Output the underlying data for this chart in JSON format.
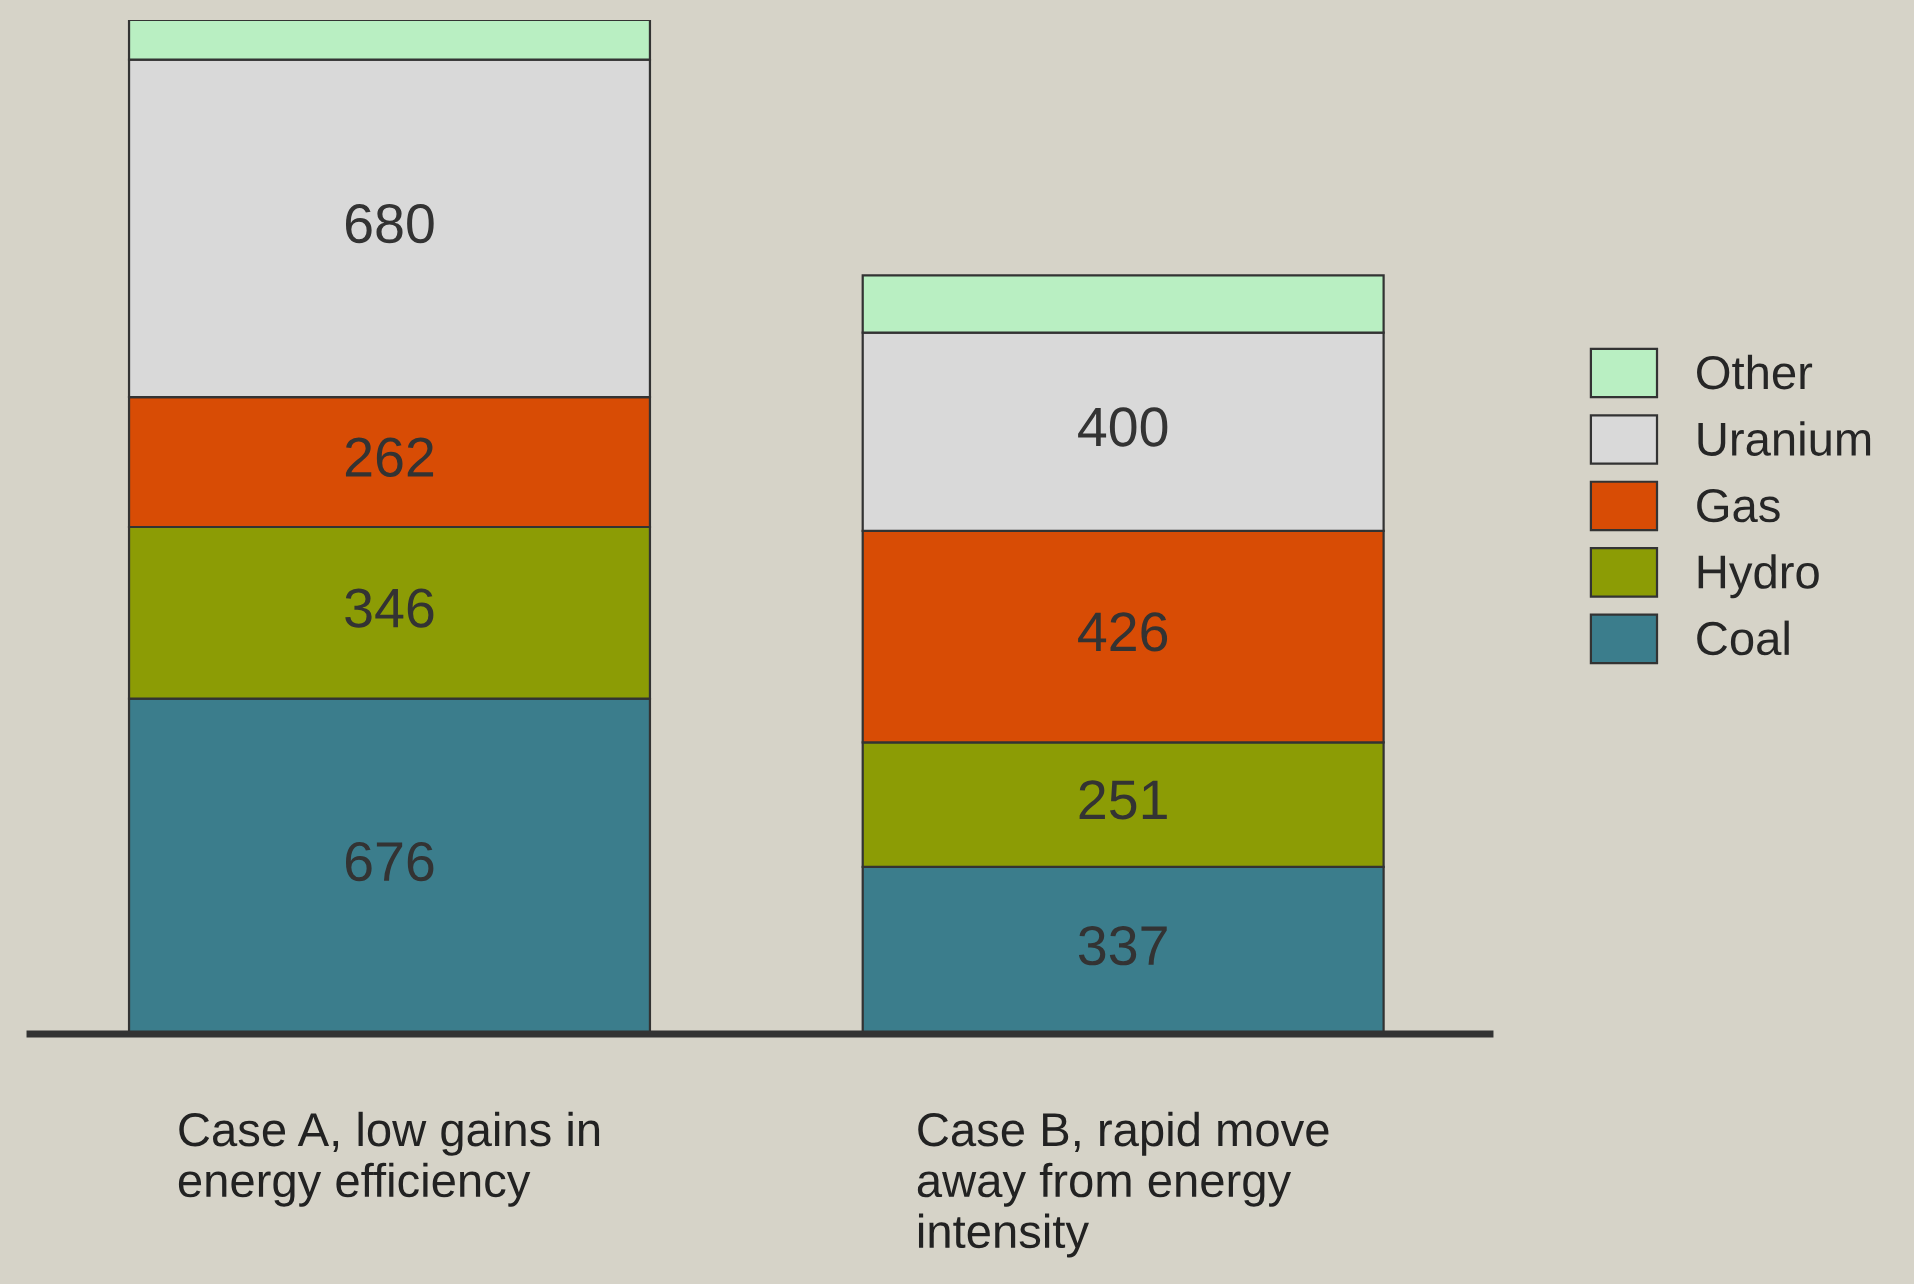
{
  "chart_data": {
    "type": "bar",
    "stacked": true,
    "categories": [
      "Case A, low gains in\nenergy efficiency",
      "Case B, rapid move\naway from energy\nintensity"
    ],
    "series": [
      {
        "name": "Coal",
        "color": "#3b7d8c",
        "values": [
          676,
          337
        ],
        "value_labels": [
          "676",
          "337"
        ]
      },
      {
        "name": "Hydro",
        "color": "#8c9c05",
        "values": [
          346,
          251
        ],
        "value_labels": [
          "346",
          "251"
        ]
      },
      {
        "name": "Gas",
        "color": "#d84c05",
        "values": [
          262,
          426
        ],
        "value_labels": [
          "262",
          "426"
        ]
      },
      {
        "name": "Uranium",
        "color": "#d9d9d9",
        "values": [
          680,
          400
        ],
        "value_labels": [
          "680",
          "400"
        ]
      },
      {
        "name": "Other",
        "color": "#b9efc2",
        "values": [
          80,
          115
        ],
        "value_labels": [
          null,
          null
        ]
      }
    ],
    "legend": "right"
  }
}
